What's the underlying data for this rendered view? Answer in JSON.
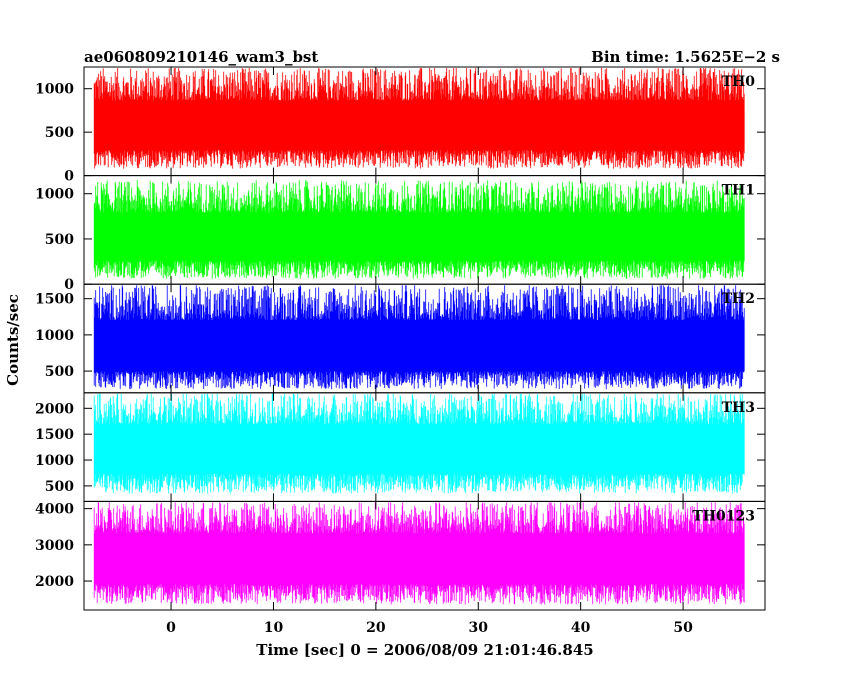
{
  "chart_data": {
    "type": "line",
    "title": "ae060809210146_wam3_bst",
    "bin_time_label": "Bin time: 1.5625E−2 s",
    "xlabel": "Time [sec] 0 = 2006/08/09 21:01:46.845",
    "ylabel": "Counts/sec",
    "xlim": [
      -8.5,
      58
    ],
    "x_ticks": [
      0,
      10,
      20,
      30,
      40,
      50
    ],
    "x_tick_labels": [
      "0",
      "10",
      "20",
      "30",
      "40",
      "50"
    ],
    "data_x_range": [
      -7.5,
      56
    ],
    "grid": false,
    "panels": [
      {
        "name": "TH0",
        "color": "#ff0000",
        "ylim": [
          0,
          1250
        ],
        "y_ticks": [
          0,
          500,
          1000
        ],
        "y_tick_labels": [
          "0",
          "500",
          "1000"
        ],
        "signal_mean": 550,
        "signal_low": 80,
        "signal_high": 1250
      },
      {
        "name": "TH1",
        "color": "#00ff00",
        "ylim": [
          0,
          1200
        ],
        "y_ticks": [
          0,
          500,
          1000
        ],
        "y_tick_labels": [
          "0",
          "500",
          "1000"
        ],
        "signal_mean": 500,
        "signal_low": 60,
        "signal_high": 1150
      },
      {
        "name": "TH2",
        "color": "#0000ff",
        "ylim": [
          200,
          1700
        ],
        "y_ticks": [
          500,
          1000,
          1500
        ],
        "y_tick_labels": [
          "500",
          "1000",
          "1500"
        ],
        "signal_mean": 800,
        "signal_low": 250,
        "signal_high": 1700
      },
      {
        "name": "TH3",
        "color": "#00ffff",
        "ylim": [
          200,
          2300
        ],
        "y_ticks": [
          500,
          1000,
          1500,
          2000
        ],
        "y_tick_labels": [
          "500",
          "1000",
          "1500",
          "2000"
        ],
        "signal_mean": 1200,
        "signal_low": 350,
        "signal_high": 2300
      },
      {
        "name": "TH0123",
        "color": "#ff00ff",
        "ylim": [
          1200,
          4200
        ],
        "y_ticks": [
          2000,
          3000,
          4000
        ],
        "y_tick_labels": [
          "2000",
          "3000",
          "4000"
        ],
        "signal_mean": 2600,
        "signal_low": 1350,
        "signal_high": 4200
      }
    ]
  }
}
